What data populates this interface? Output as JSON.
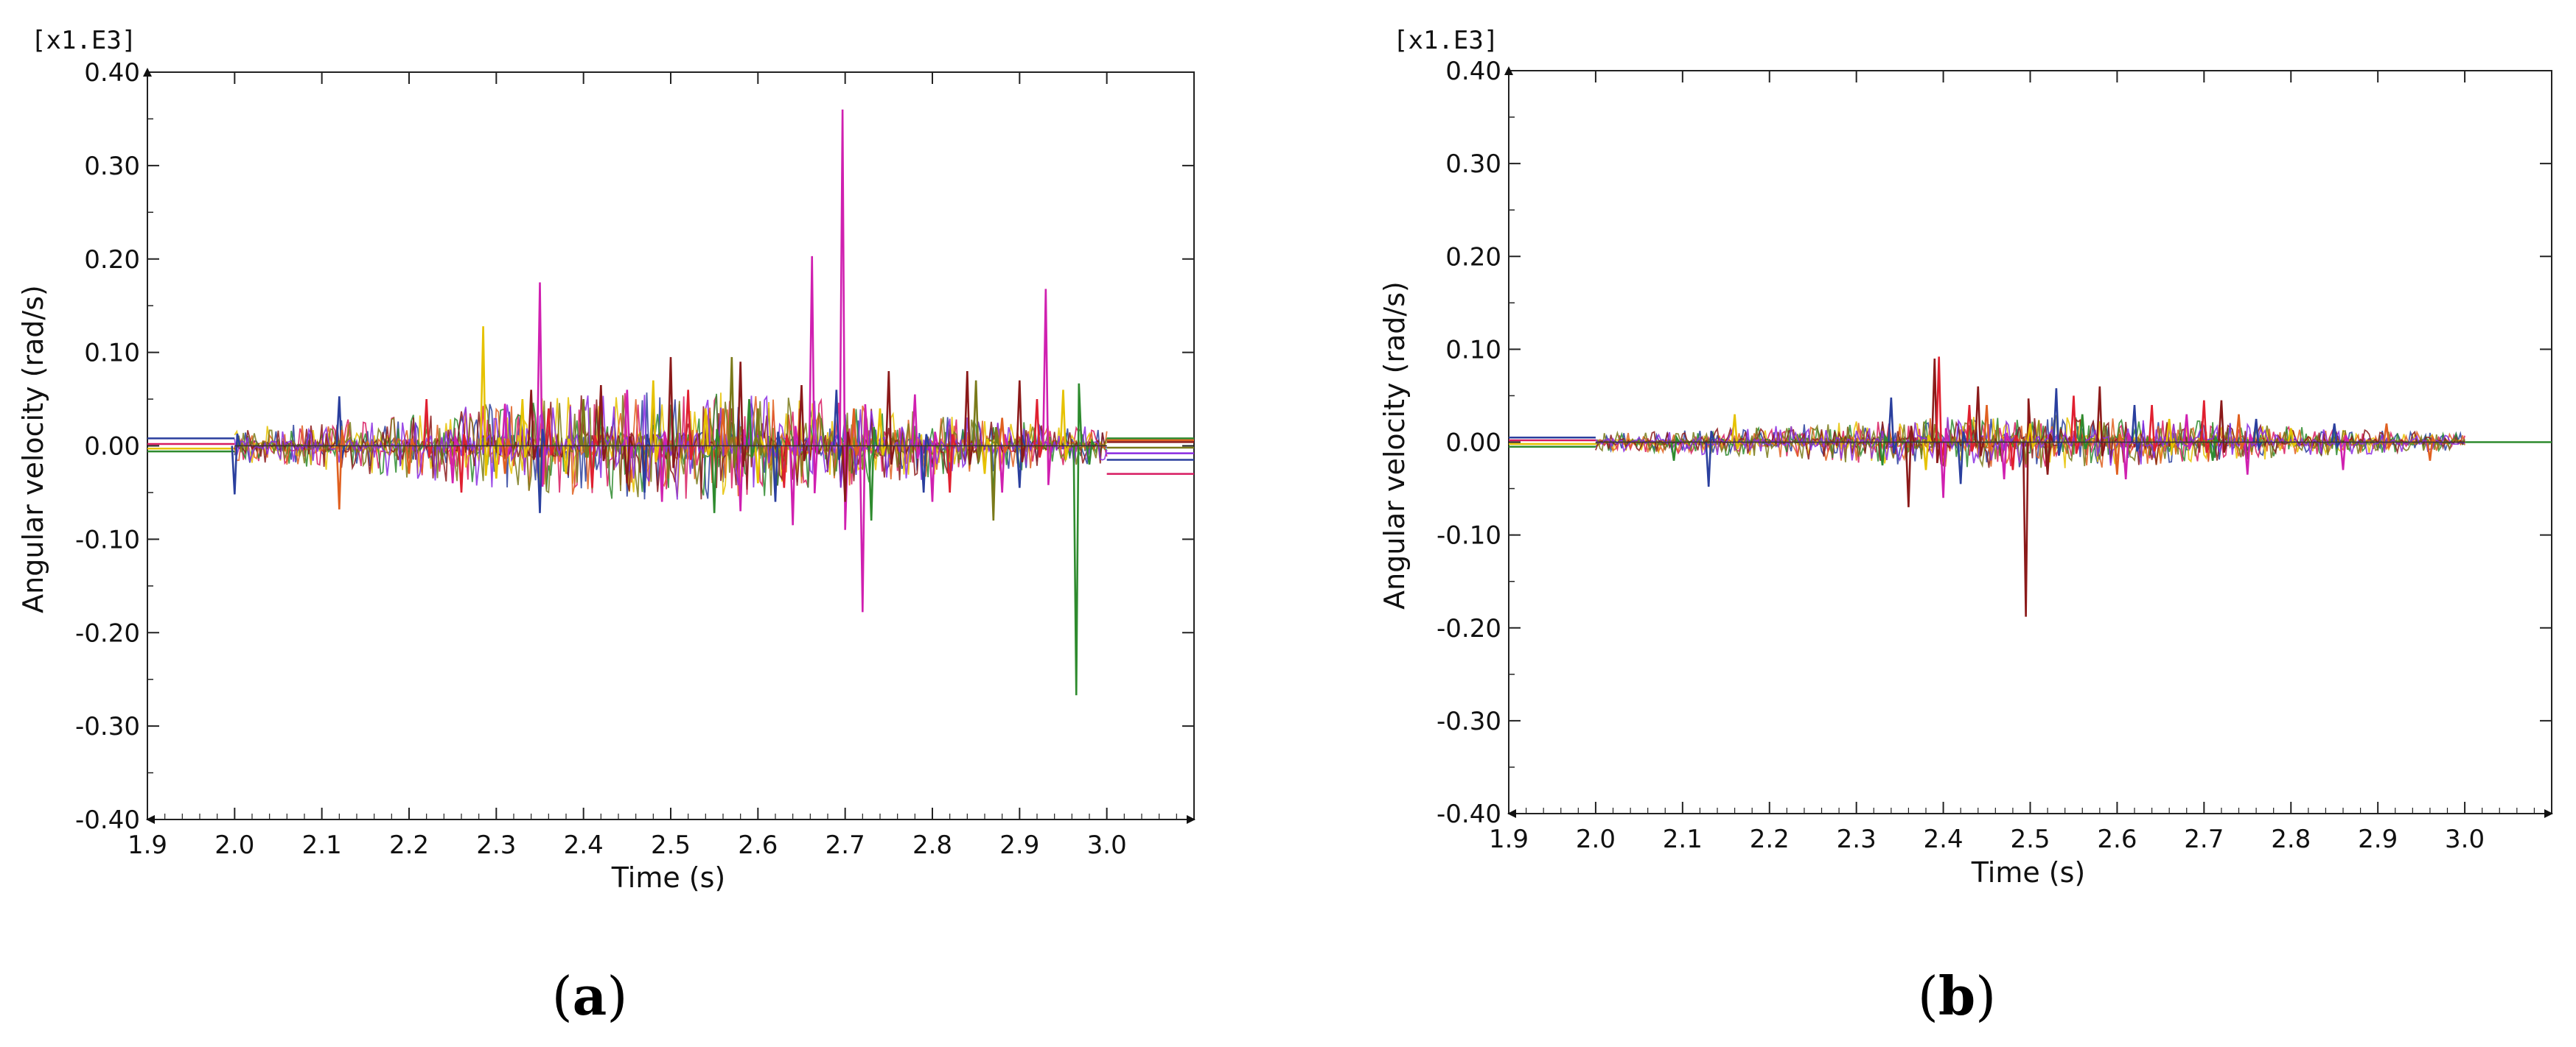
{
  "chart_data": [
    {
      "panel": "a",
      "caption_open": "(",
      "caption_letter": "a",
      "caption_close": ")",
      "type": "line",
      "multiplier_label": "[x1.E3]",
      "xlabel": "Time (s)",
      "ylabel": "Angular velocity (rad/s)",
      "xlim": [
        1.9,
        3.1
      ],
      "ylim": [
        -0.4,
        0.4
      ],
      "x_ticks": [
        "1.9",
        "2.0",
        "2.1",
        "2.2",
        "2.3",
        "2.4",
        "2.5",
        "2.6",
        "2.7",
        "2.8",
        "2.9",
        "3.0"
      ],
      "y_ticks": [
        "0.40",
        "0.30",
        "0.20",
        "0.10",
        "0.00",
        "-0.10",
        "-0.20",
        "-0.30",
        "-0.40"
      ],
      "grid": false,
      "colors": [
        "#2a3f9e",
        "#d81b60",
        "#e6c200",
        "#2e8b2e",
        "#e06020",
        "#8b1a1a",
        "#7a7a1a",
        "#8a2be2"
      ],
      "series": [
        {
          "color": "#d020b0",
          "points": [
            [
              2.35,
              0.175
            ],
            [
              2.662,
              0.203
            ],
            [
              2.697,
              0.36
            ],
            [
              2.72,
              -0.178
            ],
            [
              2.93,
              0.168
            ],
            [
              2.64,
              -0.085
            ],
            [
              2.58,
              -0.07
            ],
            [
              2.49,
              -0.06
            ],
            [
              2.8,
              -0.06
            ],
            [
              2.88,
              -0.05
            ],
            [
              2.78,
              0.055
            ],
            [
              2.45,
              0.06
            ],
            [
              2.25,
              -0.04
            ],
            [
              2.31,
              0.045
            ]
          ]
        },
        {
          "color": "#e6c200",
          "points": [
            [
              2.285,
              0.128
            ],
            [
              2.33,
              0.05
            ],
            [
              2.38,
              -0.03
            ],
            [
              2.48,
              0.07
            ],
            [
              2.54,
              0.04
            ],
            [
              2.6,
              -0.04
            ],
            [
              2.74,
              0.04
            ],
            [
              2.86,
              -0.03
            ],
            [
              2.95,
              0.06
            ],
            [
              2.3,
              -0.035
            ]
          ]
        },
        {
          "color": "#2e8b2e",
          "points": [
            [
              2.965,
              -0.267
            ],
            [
              2.55,
              -0.072
            ],
            [
              2.73,
              -0.08
            ],
            [
              2.87,
              -0.06
            ],
            [
              2.59,
              0.05
            ],
            [
              2.42,
              0.04
            ],
            [
              2.98,
              -0.02
            ]
          ]
        },
        {
          "color": "#2a3f9e",
          "points": [
            [
              2.12,
              0.053
            ],
            [
              2.35,
              -0.072
            ],
            [
              2.47,
              -0.05
            ],
            [
              2.0,
              -0.052
            ],
            [
              2.62,
              -0.06
            ],
            [
              2.69,
              0.06
            ],
            [
              2.79,
              -0.05
            ],
            [
              2.9,
              -0.045
            ]
          ]
        },
        {
          "color": "#8b1a1a",
          "points": [
            [
              2.5,
              0.095
            ],
            [
              2.58,
              0.09
            ],
            [
              2.65,
              0.065
            ],
            [
              2.75,
              0.08
            ],
            [
              2.84,
              0.08
            ],
            [
              2.9,
              0.07
            ],
            [
              2.42,
              0.065
            ],
            [
              2.34,
              0.06
            ],
            [
              2.45,
              -0.04
            ],
            [
              2.7,
              -0.06
            ]
          ]
        },
        {
          "color": "#e02030",
          "points": [
            [
              2.22,
              0.05
            ],
            [
              2.26,
              -0.05
            ],
            [
              2.36,
              0.04
            ],
            [
              2.41,
              -0.045
            ],
            [
              2.52,
              0.06
            ],
            [
              2.63,
              -0.045
            ],
            [
              2.82,
              -0.05
            ],
            [
              2.92,
              0.05
            ]
          ]
        },
        {
          "color": "#e06020",
          "points": [
            [
              2.12,
              -0.068
            ],
            [
              2.2,
              -0.03
            ],
            [
              2.31,
              -0.03
            ],
            [
              2.56,
              0.04
            ],
            [
              2.71,
              0.04
            ],
            [
              2.88,
              0.03
            ]
          ]
        },
        {
          "color": "#7a7a1a",
          "points": [
            [
              2.57,
              0.095
            ],
            [
              2.85,
              0.07
            ],
            [
              2.87,
              -0.08
            ],
            [
              2.6,
              0.04
            ],
            [
              2.4,
              0.05
            ]
          ]
        }
      ],
      "pre_levels": [
        0.008,
        0.002,
        -0.003,
        -0.006
      ],
      "post_levels": [
        0.008,
        0.006,
        0.004,
        -0.002,
        -0.008,
        -0.015,
        -0.03
      ]
    },
    {
      "panel": "b",
      "caption_open": "(",
      "caption_letter": "b",
      "caption_close": ")",
      "type": "line",
      "multiplier_label": "[x1.E3]",
      "xlabel": "Time (s)",
      "ylabel": "Angular velocity (rad/s)",
      "xlim": [
        1.9,
        3.1
      ],
      "ylim": [
        -0.4,
        0.4
      ],
      "x_ticks": [
        "1.9",
        "2.0",
        "2.1",
        "2.2",
        "2.3",
        "2.4",
        "2.5",
        "2.6",
        "2.7",
        "2.8",
        "2.9",
        "3.0"
      ],
      "y_ticks": [
        "0.40",
        "0.30",
        "0.20",
        "0.10",
        "0.00",
        "-0.10",
        "-0.20",
        "-0.30",
        "-0.40"
      ],
      "grid": false,
      "colors": [
        "#2a3f9e",
        "#d81b60",
        "#e6c200",
        "#2e8b2e",
        "#e06020",
        "#8b1a1a",
        "#7a7a1a",
        "#8a2be2"
      ],
      "series": [
        {
          "color": "#8b1a1a",
          "points": [
            [
              2.495,
              -0.188
            ],
            [
              2.39,
              0.09
            ],
            [
              2.36,
              -0.07
            ],
            [
              2.44,
              0.06
            ],
            [
              2.52,
              -0.035
            ],
            [
              2.58,
              0.06
            ],
            [
              2.72,
              0.045
            ]
          ]
        },
        {
          "color": "#e02030",
          "points": [
            [
              2.395,
              0.092
            ],
            [
              2.43,
              0.04
            ],
            [
              2.55,
              0.05
            ],
            [
              2.64,
              0.04
            ],
            [
              2.7,
              0.045
            ],
            [
              2.48,
              -0.03
            ]
          ]
        },
        {
          "color": "#d020b0",
          "points": [
            [
              2.4,
              -0.06
            ],
            [
              2.47,
              -0.04
            ],
            [
              2.61,
              -0.04
            ],
            [
              2.75,
              -0.035
            ],
            [
              2.86,
              -0.03
            ],
            [
              2.68,
              0.03
            ]
          ]
        },
        {
          "color": "#2a3f9e",
          "points": [
            [
              2.34,
              0.048
            ],
            [
              2.13,
              -0.048
            ],
            [
              2.53,
              0.058
            ],
            [
              2.42,
              -0.045
            ],
            [
              2.62,
              0.04
            ],
            [
              2.76,
              0.025
            ],
            [
              2.85,
              0.02
            ]
          ]
        },
        {
          "color": "#e6c200",
          "points": [
            [
              2.16,
              0.03
            ],
            [
              2.38,
              -0.03
            ],
            [
              2.5,
              0.02
            ],
            [
              2.66,
              0.025
            ],
            [
              2.8,
              0.015
            ]
          ]
        },
        {
          "color": "#2e8b2e",
          "points": [
            [
              2.09,
              -0.02
            ],
            [
              2.33,
              -0.025
            ],
            [
              2.56,
              0.03
            ],
            [
              2.71,
              -0.02
            ]
          ]
        },
        {
          "color": "#e06020",
          "points": [
            [
              2.45,
              0.04
            ],
            [
              2.6,
              -0.035
            ],
            [
              2.74,
              0.03
            ],
            [
              2.91,
              0.02
            ],
            [
              2.96,
              -0.02
            ]
          ]
        }
      ],
      "pre_levels": [
        0.005,
        0.002,
        -0.002,
        -0.005
      ],
      "post_levels": [
        0.0
      ]
    }
  ]
}
